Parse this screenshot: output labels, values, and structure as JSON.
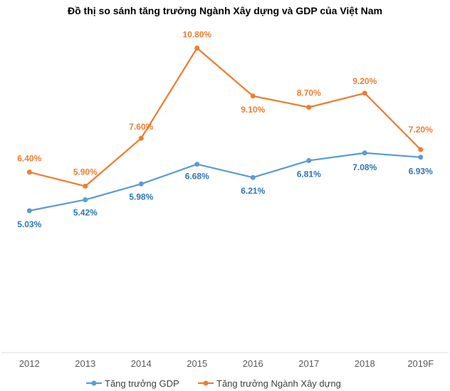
{
  "chart_data": {
    "type": "line",
    "title": "Đồ thị so sánh tăng trưởng Ngành Xây dựng và GDP của Việt Nam",
    "xlabel": "",
    "ylabel": "",
    "categories": [
      "2012",
      "2013",
      "2014",
      "2015",
      "2016",
      "2017",
      "2018",
      "2019F"
    ],
    "ylim": [
      0,
      12
    ],
    "grid": false,
    "legend_position": "bottom",
    "series": [
      {
        "name": "Tăng trưởng GDP",
        "color": "#5B9BD5",
        "label_color": "#2E75B6",
        "values": [
          5.03,
          5.42,
          5.98,
          6.68,
          6.21,
          6.81,
          7.08,
          6.93
        ],
        "labels": [
          "5.03%",
          "5.42%",
          "5.98%",
          "6.68%",
          "6.21%",
          "6.81%",
          "7.08%",
          "6.93%"
        ]
      },
      {
        "name": "Tăng trưởng Ngành Xây dựng",
        "color": "#ED7D31",
        "label_color": "#ED7D31",
        "values": [
          6.4,
          5.9,
          7.6,
          10.8,
          9.1,
          8.7,
          9.2,
          7.2
        ],
        "labels": [
          "6.40%",
          "5.90%",
          "7.60%",
          "10.80%",
          "9.10%",
          "8.70%",
          "9.20%",
          "7.20%"
        ]
      }
    ]
  }
}
